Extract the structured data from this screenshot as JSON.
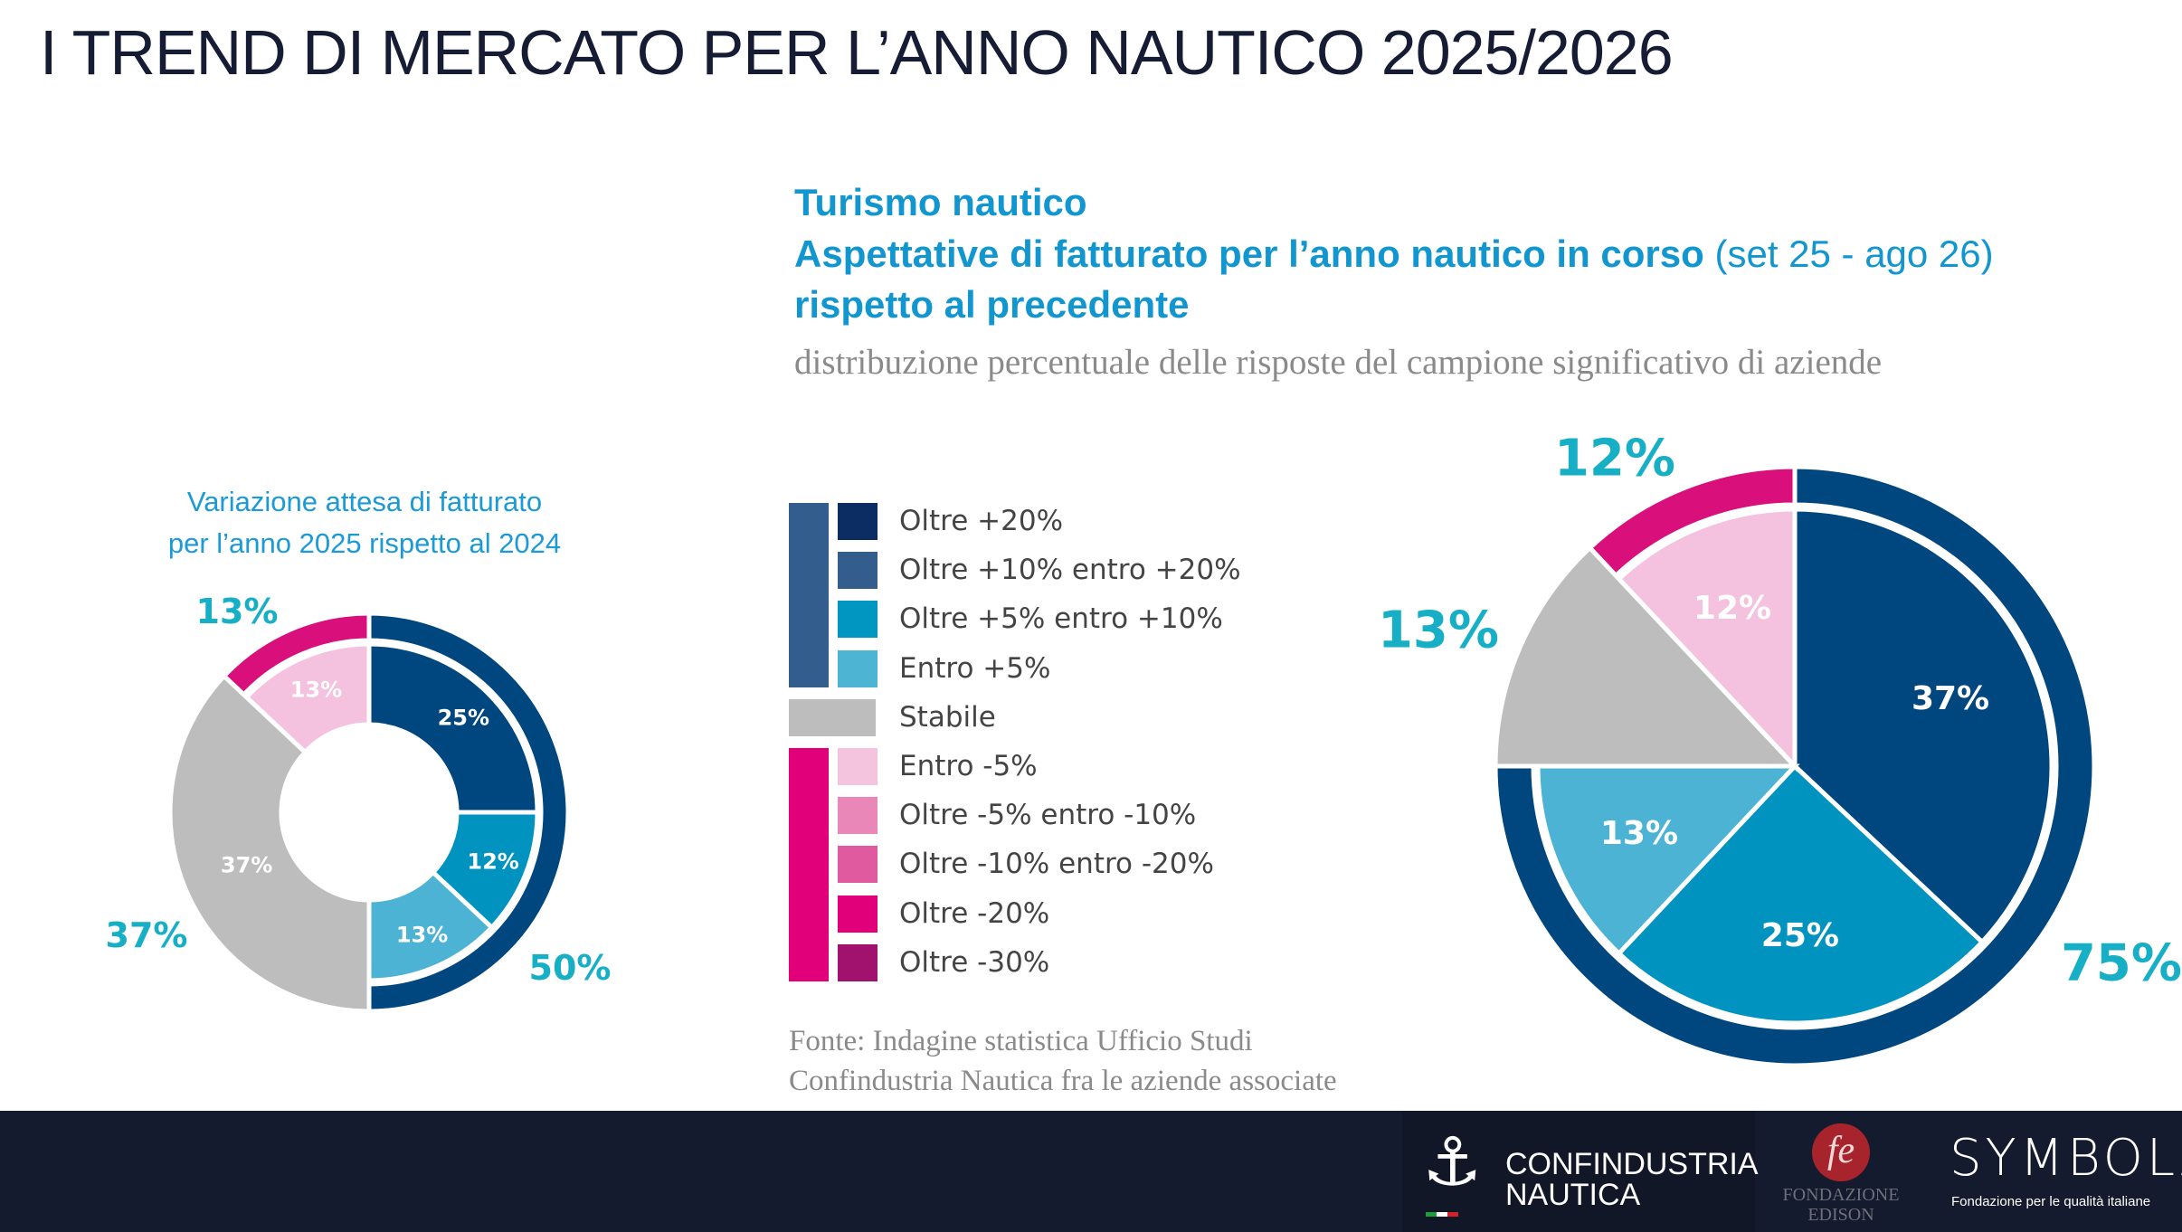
{
  "header": {
    "title": "I TREND DI MERCATO PER L’ANNO NAUTICO 2025/2026"
  },
  "heading": {
    "line1": "Turismo nautico",
    "line2_bold": "Aspettative di fatturato per l’anno nautico in corso",
    "line2_light": "(set 25 - ago 26)",
    "line3": "rispetto al precedente",
    "subtitle": "distribuzione percentuale delle risposte del campione significativo di aziende"
  },
  "legend": {
    "items": [
      {
        "label": "Oltre +20%",
        "color": "#0c2d63",
        "group": "positive"
      },
      {
        "label": "Oltre +10% entro +20%",
        "color": "#325d8c",
        "group": "positive"
      },
      {
        "label": "Oltre +5% entro +10%",
        "color": "#0096c2",
        "group": "positive"
      },
      {
        "label": "Entro +5%",
        "color": "#4db4d4",
        "group": "positive"
      },
      {
        "label": "Stabile",
        "color": "#bdbdbd",
        "group": "stable"
      },
      {
        "label": "Entro -5%",
        "color": "#f4c3de",
        "group": "negative"
      },
      {
        "label": "Oltre -5% entro -10%",
        "color": "#ea87b9",
        "group": "negative"
      },
      {
        "label": "Oltre -10% entro -20%",
        "color": "#e05aa0",
        "group": "negative"
      },
      {
        "label": "Oltre -20%",
        "color": "#e2007a",
        "group": "negative"
      },
      {
        "label": "Oltre -30%",
        "color": "#a0126e",
        "group": "negative"
      }
    ],
    "group_colors": {
      "positive": "#325d8c",
      "stable": "#bdbdbd",
      "negative": "#e2007a"
    }
  },
  "source": {
    "line1": "Fonte: Indagine statistica Ufficio Studi",
    "line2": "Confindustria Nautica fra le aziende associate"
  },
  "colors": {
    "label_teal": "#17afc6",
    "aggregate_navy": "#00467f",
    "aggregate_magenta": "#d90f7c",
    "separator": "#ffffff"
  },
  "chart_data": [
    {
      "type": "pie",
      "variant": "donut-nested",
      "title": "Variazione attesa di fatturato per l’anno 2025 rispetto al 2024",
      "title_lines": [
        "Variazione attesa di fatturato",
        "per l’anno 2025 rispetto al 2024"
      ],
      "slices": [
        {
          "category": "Oltre +10% entro +20%",
          "value": 25,
          "label": "25%",
          "color": "#00467f"
        },
        {
          "category": "Oltre +5% entro +10%",
          "value": 12,
          "label": "12%",
          "color": "#0093c0"
        },
        {
          "category": "Entro +5%",
          "value": 13,
          "label": "13%",
          "color": "#4cb3d5"
        },
        {
          "category": "Stabile",
          "value": 37,
          "label": "37%",
          "color": "#bdbdbd",
          "full_depth": true
        },
        {
          "category": "Entro -5%",
          "value": 13,
          "label": "13%",
          "color": "#f4c2de"
        }
      ],
      "aggregates": [
        {
          "group": "positive",
          "value": 50,
          "label": "50%",
          "color": "#00467f"
        },
        {
          "group": "stable",
          "value": 37,
          "label": "37%"
        },
        {
          "group": "negative",
          "value": 13,
          "label": "13%",
          "color": "#d90f7c"
        }
      ]
    },
    {
      "type": "pie",
      "variant": "pie-with-outer-band",
      "title": "Aspettative di fatturato per l’anno nautico in corso (set 25 - ago 26) rispetto al precedente",
      "slices": [
        {
          "category": "Oltre +10% entro +20%",
          "value": 37,
          "label": "37%",
          "color": "#00467f"
        },
        {
          "category": "Oltre +5% entro +10%",
          "value": 25,
          "label": "25%",
          "color": "#0093c0"
        },
        {
          "category": "Entro +5%",
          "value": 13,
          "label": "13%",
          "color": "#4cb3d5"
        },
        {
          "category": "Stabile",
          "value": 13,
          "label": "",
          "color": "#bdbdbd",
          "full_depth": true
        },
        {
          "category": "Entro -5%",
          "value": 12,
          "label": "12%",
          "color": "#f4c2de"
        }
      ],
      "aggregates": [
        {
          "group": "positive",
          "value": 75,
          "label": "75%",
          "color": "#00467f"
        },
        {
          "group": "stable",
          "value": 13,
          "label": "13%"
        },
        {
          "group": "negative",
          "value": 12,
          "label": "12%",
          "color": "#d90f7c"
        }
      ]
    }
  ],
  "footer": {
    "logo1": {
      "line1": "CONFINDUSTRIA",
      "line2": "NAUTICA"
    },
    "logo2": {
      "mark": "fe",
      "line1": "FONDAZIONE",
      "line2": "EDISON"
    },
    "logo3": {
      "name": "SYMBOLA",
      "tagline": "Fondazione per le qualità italiane"
    }
  }
}
